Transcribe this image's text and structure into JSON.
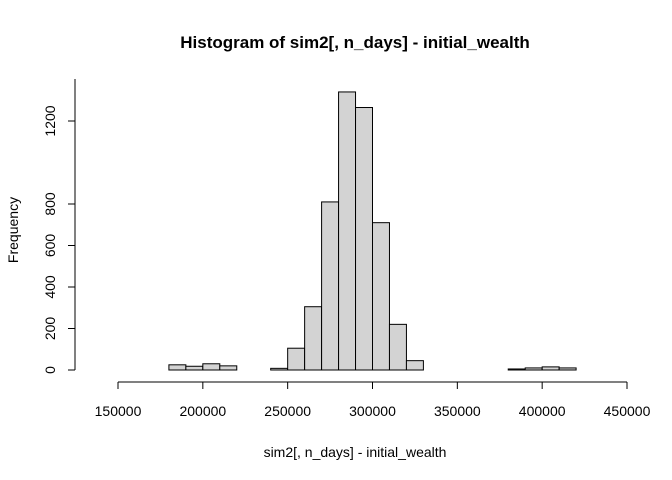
{
  "chart_data": {
    "type": "bar",
    "title": "Histogram of sim2[, n_days] - initial_wealth",
    "xlabel": "sim2[, n_days] - initial_wealth",
    "ylabel": "Frequency",
    "xlim": [
      140000,
      440000
    ],
    "ylim": [
      0,
      1400
    ],
    "bin_width": 10000,
    "x_ticks": [
      150000,
      200000,
      250000,
      300000,
      350000,
      400000,
      450000
    ],
    "y_ticks": [
      0,
      200,
      400,
      600,
      800,
      1200
    ],
    "bar_fill": "#d3d3d3",
    "bins": [
      {
        "start": 140000,
        "count": 0
      },
      {
        "start": 150000,
        "count": 0
      },
      {
        "start": 160000,
        "count": 0
      },
      {
        "start": 170000,
        "count": 0
      },
      {
        "start": 180000,
        "count": 25
      },
      {
        "start": 190000,
        "count": 18
      },
      {
        "start": 200000,
        "count": 30
      },
      {
        "start": 210000,
        "count": 20
      },
      {
        "start": 220000,
        "count": 0
      },
      {
        "start": 230000,
        "count": 0
      },
      {
        "start": 240000,
        "count": 8
      },
      {
        "start": 250000,
        "count": 105
      },
      {
        "start": 260000,
        "count": 305
      },
      {
        "start": 270000,
        "count": 810
      },
      {
        "start": 280000,
        "count": 1340
      },
      {
        "start": 290000,
        "count": 1265
      },
      {
        "start": 300000,
        "count": 710
      },
      {
        "start": 310000,
        "count": 220
      },
      {
        "start": 320000,
        "count": 45
      },
      {
        "start": 330000,
        "count": 0
      },
      {
        "start": 340000,
        "count": 0
      },
      {
        "start": 350000,
        "count": 0
      },
      {
        "start": 360000,
        "count": 0
      },
      {
        "start": 370000,
        "count": 0
      },
      {
        "start": 380000,
        "count": 5
      },
      {
        "start": 390000,
        "count": 10
      },
      {
        "start": 400000,
        "count": 15
      },
      {
        "start": 410000,
        "count": 10
      },
      {
        "start": 420000,
        "count": 0
      },
      {
        "start": 430000,
        "count": 0
      }
    ]
  }
}
